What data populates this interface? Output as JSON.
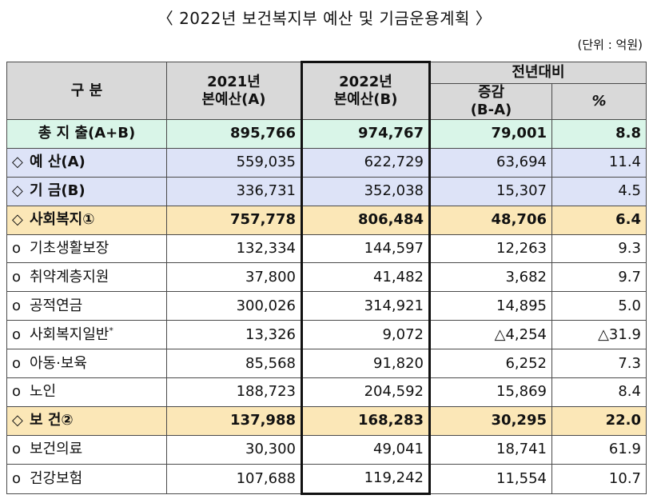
{
  "title": "〈 2022년 보건복지부 예산 및 기금운용계획 〉",
  "unit": "(단위 : 억원)",
  "header": {
    "category": "구 분",
    "y2021_line1": "2021년",
    "y2021_line2": "본예산(A)",
    "y2022_line1": "2022년",
    "y2022_line2": "본예산(B)",
    "yoy": "전년대비",
    "change_line1": "증감",
    "change_line2": "(B-A)",
    "pct": "%"
  },
  "rows": [
    {
      "bullet": "",
      "label": "총 지 출(A+B)",
      "sup": "",
      "v2021": "895,766",
      "v2022": "974,767",
      "diff": "79,001",
      "pct": "8.8"
    },
    {
      "bullet": "◇",
      "label": "예 산(A)",
      "sup": "",
      "v2021": "559,035",
      "v2022": "622,729",
      "diff": "63,694",
      "pct": "11.4"
    },
    {
      "bullet": "◇",
      "label": "기 금(B)",
      "sup": "",
      "v2021": "336,731",
      "v2022": "352,038",
      "diff": "15,307",
      "pct": "4.5"
    },
    {
      "bullet": "◇",
      "label": "사회복지①",
      "sup": "",
      "v2021": "757,778",
      "v2022": "806,484",
      "diff": "48,706",
      "pct": "6.4"
    },
    {
      "bullet": "o",
      "label": "기초생활보장",
      "sup": "",
      "v2021": "132,334",
      "v2022": "144,597",
      "diff": "12,263",
      "pct": "9.3"
    },
    {
      "bullet": "o",
      "label": "취약계층지원",
      "sup": "",
      "v2021": "37,800",
      "v2022": "41,482",
      "diff": "3,682",
      "pct": "9.7"
    },
    {
      "bullet": "o",
      "label": "공적연금",
      "sup": "",
      "v2021": "300,026",
      "v2022": "314,921",
      "diff": "14,895",
      "pct": "5.0"
    },
    {
      "bullet": "o",
      "label": "사회복지일반",
      "sup": "*",
      "v2021": "13,326",
      "v2022": "9,072",
      "diff": "△4,254",
      "pct": "△31.9"
    },
    {
      "bullet": "o",
      "label": "아동·보육",
      "sup": "",
      "v2021": "85,568",
      "v2022": "91,820",
      "diff": "6,252",
      "pct": "7.3"
    },
    {
      "bullet": "o",
      "label": "노인",
      "sup": "",
      "v2021": "188,723",
      "v2022": "204,592",
      "diff": "15,869",
      "pct": "8.4"
    },
    {
      "bullet": "◇",
      "label": "보 건②",
      "sup": "",
      "v2021": "137,988",
      "v2022": "168,283",
      "diff": "30,295",
      "pct": "22.0"
    },
    {
      "bullet": "o",
      "label": "보건의료",
      "sup": "",
      "v2021": "30,300",
      "v2022": "49,041",
      "diff": "18,741",
      "pct": "61.9"
    },
    {
      "bullet": "o",
      "label": "건강보험",
      "sup": "",
      "v2021": "107,688",
      "v2022": "119,242",
      "diff": "11,554",
      "pct": "10.7"
    }
  ],
  "colors": {
    "header_bg": "#d9d9d9",
    "total_bg": "#d9f5e8",
    "budget_fund_bg": "#dde3f7",
    "sector_bg": "#fbe7b7",
    "item_bg": "#ffffff"
  }
}
